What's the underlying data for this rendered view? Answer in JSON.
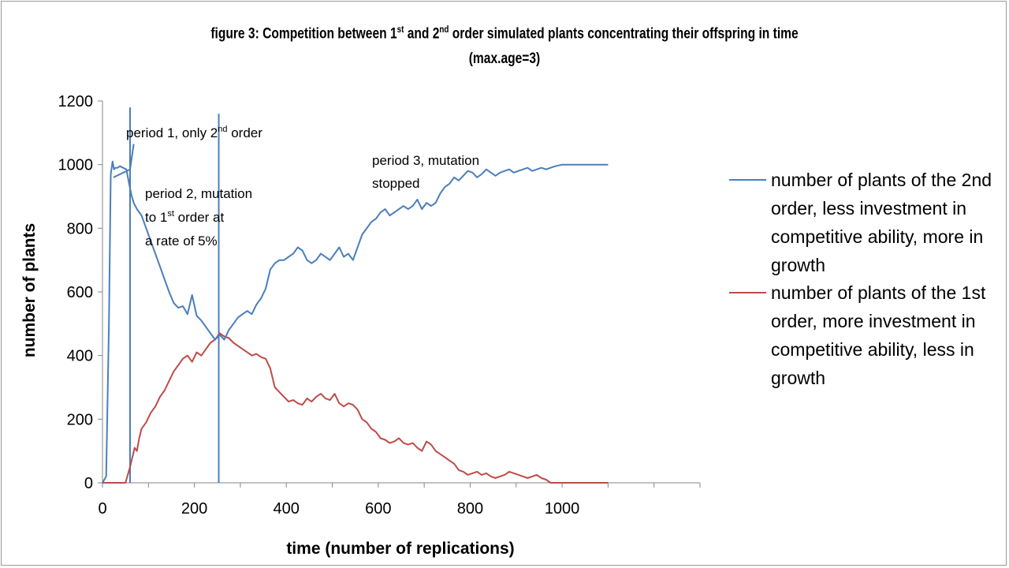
{
  "title": {
    "line1_pre": "figure 3: Competition between 1",
    "line1_sup1": "st",
    "line1_mid": " and 2",
    "line1_sup2": "nd",
    "line1_post": " order simulated plants concentrating their offspring in time",
    "line2": "(max.age=3)"
  },
  "annotations": {
    "p1_a": "period 1, only 2",
    "p1_sup": "nd",
    "p1_b": " order",
    "p2_l1": "period 2, mutation",
    "p2_l2a": "to 1",
    "p2_l2sup": "st",
    "p2_l2b": " order at",
    "p2_l3": "a rate of 5%",
    "p3_l1": "period 3, mutation",
    "p3_l2": "stopped"
  },
  "colors": {
    "second_order": "#4a7ebb",
    "first_order": "#be4b48",
    "axis": "#868686"
  },
  "chart_data": {
    "type": "line",
    "xlabel": "time (number of replications)",
    "ylabel": "number of plants",
    "xlim": [
      0,
      1300
    ],
    "ylim": [
      0,
      1200
    ],
    "xticks": [
      0,
      200,
      400,
      600,
      800,
      1000
    ],
    "yticks": [
      0,
      200,
      400,
      600,
      800,
      1000,
      1200
    ],
    "vertical_markers": [
      {
        "x": 60,
        "y": [
          0,
          1180
        ]
      },
      {
        "x": 253,
        "y": [
          0,
          1160
        ]
      }
    ],
    "legend_position": "right",
    "series": [
      {
        "name": "number of plants of the 2nd order, less investment in competitive ability, more in growth",
        "legend_lines": [
          "number of plants of the 2nd",
          "order, less investment in",
          "competitive ability, more in",
          "growth"
        ],
        "color": "#4a7ebb",
        "x": [
          0,
          8,
          14,
          18,
          22,
          25,
          28,
          32,
          38,
          45,
          52,
          58,
          63,
          68,
          75,
          85,
          95,
          105,
          115,
          125,
          135,
          145,
          155,
          165,
          175,
          185,
          195,
          205,
          215,
          225,
          235,
          245,
          255,
          265,
          275,
          285,
          295,
          305,
          315,
          325,
          335,
          345,
          355,
          365,
          375,
          385,
          395,
          405,
          415,
          425,
          435,
          445,
          455,
          465,
          475,
          485,
          495,
          505,
          515,
          525,
          535,
          545,
          555,
          565,
          575,
          585,
          595,
          605,
          615,
          625,
          635,
          645,
          655,
          665,
          675,
          685,
          695,
          705,
          715,
          725,
          735,
          745,
          755,
          765,
          775,
          785,
          795,
          805,
          815,
          825,
          835,
          845,
          855,
          865,
          875,
          885,
          895,
          905,
          915,
          925,
          935,
          945,
          955,
          965,
          975,
          985,
          1000,
          1050,
          1100
        ],
        "y": [
          0,
          20,
          500,
          970,
          1010,
          985,
          990,
          990,
          995,
          990,
          985,
          940,
          905,
          880,
          860,
          840,
          800,
          760,
          720,
          680,
          640,
          600,
          565,
          550,
          555,
          530,
          590,
          525,
          510,
          490,
          470,
          450,
          465,
          450,
          480,
          500,
          520,
          530,
          540,
          530,
          560,
          580,
          610,
          670,
          690,
          700,
          700,
          710,
          720,
          740,
          730,
          700,
          690,
          700,
          720,
          710,
          700,
          720,
          740,
          710,
          720,
          700,
          740,
          780,
          800,
          820,
          830,
          850,
          860,
          840,
          850,
          860,
          870,
          860,
          870,
          890,
          860,
          880,
          870,
          880,
          910,
          930,
          940,
          960,
          950,
          965,
          980,
          975,
          960,
          970,
          985,
          975,
          965,
          975,
          980,
          985,
          975,
          980,
          985,
          990,
          980,
          985,
          990,
          985,
          990,
          995,
          1000,
          1000,
          1000
        ]
      },
      {
        "name": "number of plants of the 1st order, more investment in competitive ability, less in growth",
        "legend_lines": [
          "number of plants of the 1st",
          "order, more investment in",
          "competitive ability, less in",
          "growth"
        ],
        "color": "#be4b48",
        "x": [
          0,
          50,
          60,
          65,
          70,
          75,
          80,
          85,
          95,
          105,
          115,
          125,
          135,
          145,
          155,
          165,
          175,
          185,
          195,
          205,
          215,
          225,
          235,
          245,
          255,
          265,
          275,
          285,
          295,
          305,
          315,
          325,
          335,
          345,
          355,
          365,
          375,
          385,
          395,
          405,
          415,
          425,
          435,
          445,
          455,
          465,
          475,
          485,
          495,
          505,
          515,
          525,
          535,
          545,
          555,
          565,
          575,
          585,
          595,
          605,
          615,
          625,
          635,
          645,
          655,
          665,
          675,
          685,
          695,
          705,
          715,
          725,
          735,
          745,
          755,
          765,
          775,
          785,
          795,
          805,
          815,
          825,
          835,
          845,
          855,
          865,
          875,
          885,
          895,
          905,
          915,
          925,
          935,
          945,
          955,
          965,
          975,
          985,
          1000,
          1050,
          1100
        ],
        "y": [
          0,
          0,
          50,
          80,
          110,
          100,
          140,
          170,
          190,
          220,
          240,
          270,
          290,
          320,
          350,
          370,
          390,
          400,
          380,
          410,
          400,
          420,
          440,
          450,
          470,
          460,
          455,
          440,
          430,
          420,
          410,
          400,
          405,
          395,
          390,
          360,
          300,
          285,
          270,
          255,
          260,
          250,
          245,
          265,
          255,
          270,
          280,
          265,
          260,
          280,
          250,
          240,
          250,
          245,
          230,
          200,
          190,
          170,
          160,
          140,
          135,
          125,
          130,
          140,
          125,
          120,
          125,
          110,
          100,
          130,
          120,
          100,
          90,
          80,
          70,
          60,
          40,
          35,
          25,
          30,
          35,
          25,
          30,
          20,
          15,
          20,
          25,
          35,
          30,
          25,
          20,
          15,
          20,
          25,
          15,
          10,
          0,
          0,
          0,
          0,
          0
        ]
      }
    ]
  }
}
